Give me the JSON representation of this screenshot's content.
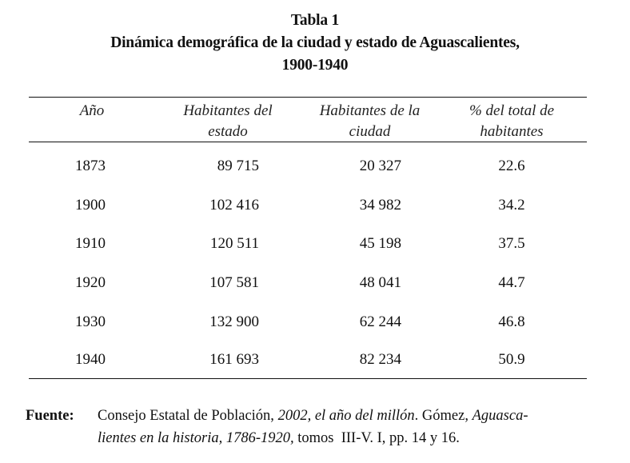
{
  "title": {
    "label": "Tabla 1",
    "line1": "Dinámica demográfica de la ciudad y estado de Aguascalientes,",
    "line2": "1900-1940"
  },
  "table": {
    "headers": [
      {
        "line1": "Año",
        "line2": ""
      },
      {
        "line1": "Habitantes del",
        "line2": "estado"
      },
      {
        "line1": "Habitantes de la",
        "line2": "ciudad"
      },
      {
        "line1": "% del total de",
        "line2": "habitantes"
      }
    ],
    "rows": [
      {
        "year": "1873",
        "state": "89 715",
        "city": "20 327",
        "pct": "22.6"
      },
      {
        "year": "1900",
        "state": "102 416",
        "city": "34 982",
        "pct": "34.2"
      },
      {
        "year": "1910",
        "state": "120 511",
        "city": "45 198",
        "pct": "37.5"
      },
      {
        "year": "1920",
        "state": "107 581",
        "city": "48 041",
        "pct": "44.7"
      },
      {
        "year": "1930",
        "state": "132 900",
        "city": "62 244",
        "pct": "46.8"
      },
      {
        "year": "1940",
        "state": "161 693",
        "city": "82 234",
        "pct": "50.9"
      }
    ]
  },
  "source": {
    "label": "Fuente:",
    "part1": "Consejo Estatal de Población, ",
    "part2_italic": "2002, el año del millón",
    "part3": ". Gómez, ",
    "part4_italic": "Aguasca-",
    "part5_italic": "lientes en la historia, 1786-1920,",
    "part6": " tomos  III-V. I, pp. 14 y 16."
  }
}
